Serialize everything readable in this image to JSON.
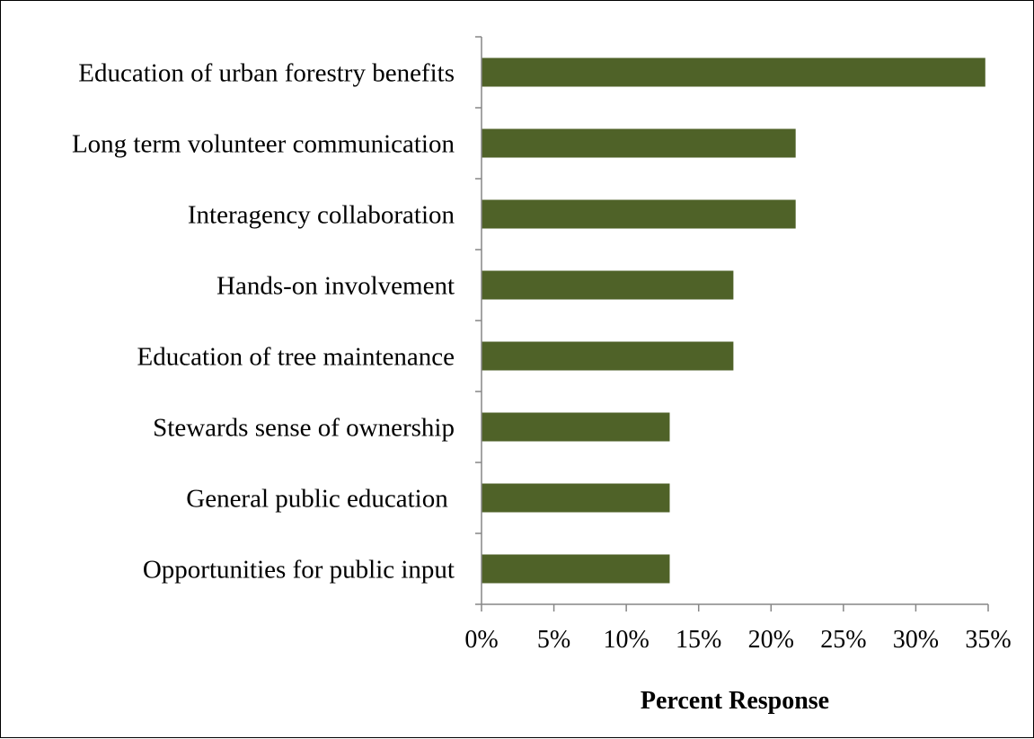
{
  "chart_data": {
    "type": "bar",
    "orientation": "horizontal",
    "title": "",
    "xlabel": "Percent Response",
    "ylabel": "",
    "xlim": [
      0,
      35
    ],
    "x_ticks": [
      "0%",
      "5%",
      "10%",
      "15%",
      "20%",
      "25%",
      "30%",
      "35%"
    ],
    "x_tick_values": [
      0,
      5,
      10,
      15,
      20,
      25,
      30,
      35
    ],
    "grid": false,
    "legend": "none",
    "bar_color": "#4f6228",
    "categories": [
      "Education of urban forestry benefits",
      "Long term volunteer communication",
      "Interagency collaboration",
      "Hands-on involvement",
      "Education of tree maintenance",
      "Stewards sense of ownership",
      "General public education ",
      "Opportunities for public input"
    ],
    "values": [
      34.8,
      21.7,
      21.7,
      17.4,
      17.4,
      13.0,
      13.0,
      13.0
    ]
  }
}
